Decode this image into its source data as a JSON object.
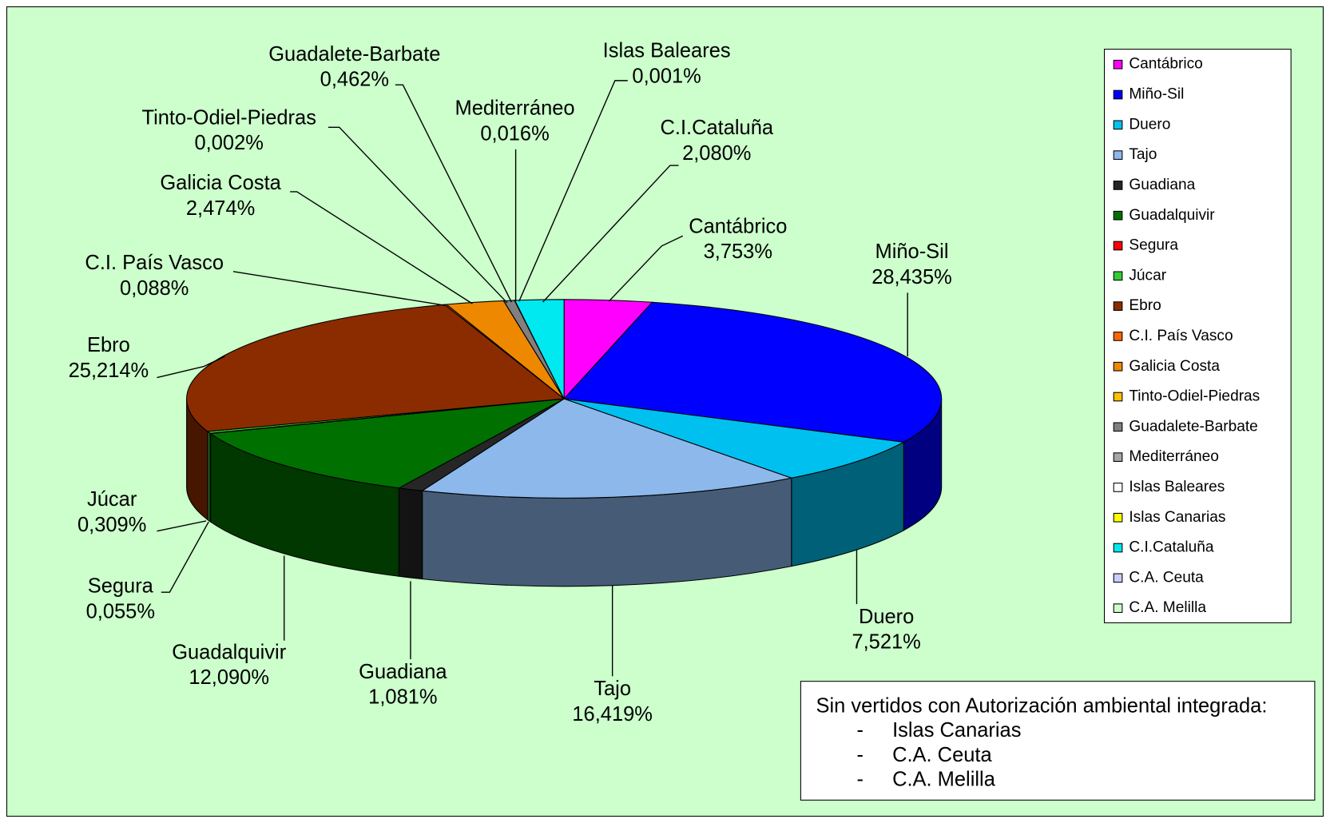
{
  "chart_data": {
    "type": "pie",
    "categories": [
      "Cantábrico",
      "Miño-Sil",
      "Duero",
      "Tajo",
      "Guadiana",
      "Guadalquivir",
      "Segura",
      "Júcar",
      "Ebro",
      "C.I. País Vasco",
      "Galicia Costa",
      "Tinto-Odiel-Piedras",
      "Guadalete-Barbate",
      "Mediterráneo",
      "Islas Baleares",
      "Islas Canarias",
      "C.I.Cataluña",
      "C.A. Ceuta",
      "C.A. Melilla"
    ],
    "values": [
      3.753,
      28.435,
      7.521,
      16.419,
      1.081,
      12.09,
      0.055,
      0.309,
      25.214,
      0.088,
      2.474,
      0.002,
      0.462,
      0.016,
      0.001,
      0,
      2.08,
      0,
      0
    ],
    "value_labels": [
      "3,753%",
      "28,435%",
      "7,521%",
      "16,419%",
      "1,081%",
      "12,090%",
      "0,055%",
      "0,309%",
      "25,214%",
      "0,088%",
      "2,474%",
      "0,002%",
      "0,462%",
      "0,016%",
      "0,001%",
      null,
      "2,080%",
      null,
      null
    ],
    "colors": [
      "#ff00ff",
      "#0000ff",
      "#00c0f0",
      "#8cb8ec",
      "#262626",
      "#007000",
      "#ff0000",
      "#33cc33",
      "#8b2c00",
      "#ff6600",
      "#ee8800",
      "#ffc000",
      "#808080",
      "#a6a6a6",
      "#ffffff",
      "#ffff00",
      "#00e8f0",
      "#ccccff",
      "#ccffcc"
    ],
    "legend": "right",
    "projection": "3d"
  },
  "note": {
    "title": "Sin vertidos con Autorización ambiental integrada:",
    "bullet": "-",
    "items": [
      "Islas Canarias",
      "C.A. Ceuta",
      "C.A. Melilla"
    ]
  }
}
